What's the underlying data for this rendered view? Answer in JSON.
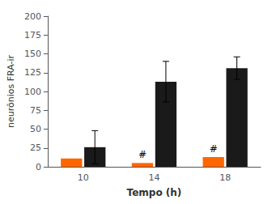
{
  "chart_data": {
    "type": "bar",
    "categories": [
      "10",
      "14",
      "18"
    ],
    "series": [
      {
        "color": "#FF6600",
        "values": [
          11,
          5,
          13
        ]
      },
      {
        "color": "#1a1a1a",
        "values": [
          26,
          113,
          131
        ],
        "errors": [
          22,
          27,
          15
        ]
      }
    ],
    "xlabel": "Tempo (h)",
    "ylabel": "neurônios FRA-ir",
    "ylim": [
      0,
      200
    ],
    "yticks": [
      0,
      25,
      50,
      75,
      100,
      125,
      150,
      175,
      200
    ],
    "grid": false,
    "annotations": [
      {
        "text": "#",
        "category": "14",
        "series": 0
      },
      {
        "text": "#",
        "category": "18",
        "series": 0
      }
    ]
  }
}
